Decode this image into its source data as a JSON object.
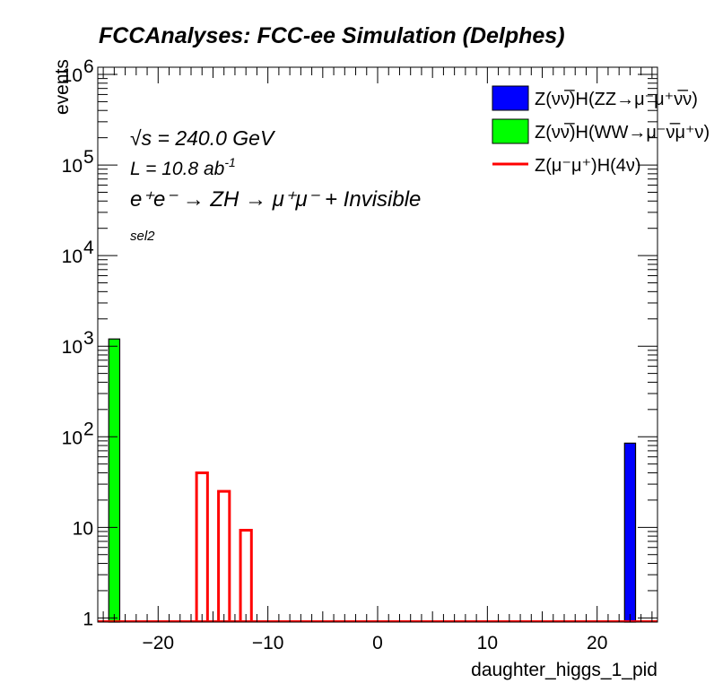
{
  "chart_data": {
    "type": "bar",
    "title": "FCCAnalyses: FCC-ee Simulation (Delphes)",
    "xlabel": "daughter_higgs_1_pid",
    "ylabel": "events",
    "xlim": [
      -25.5,
      25.5
    ],
    "ylim": [
      0.9,
      1200000
    ],
    "y_scale": "log",
    "x_ticks": [
      -20,
      -10,
      0,
      10,
      20
    ],
    "x_tick_labels": [
      "−20",
      "−10",
      "0",
      "10",
      "20"
    ],
    "y_ticks": [
      {
        "value": 1,
        "base": "1",
        "exp": ""
      },
      {
        "value": 10,
        "base": "10",
        "exp": ""
      },
      {
        "value": 100,
        "base": "10",
        "exp": "2"
      },
      {
        "value": 1000,
        "base": "10",
        "exp": "3"
      },
      {
        "value": 10000,
        "base": "10",
        "exp": "4"
      },
      {
        "value": 100000,
        "base": "10",
        "exp": "5"
      },
      {
        "value": 1000000,
        "base": "10",
        "exp": "6"
      }
    ],
    "annotations": {
      "sqrt_sym": "√",
      "sqrt_s": "s",
      "energy": " = 240.0 GeV",
      "lumi_base": "L = 10.8 ab",
      "lumi_exp": "-1",
      "process": "e⁺e⁻ → ZH → μ⁺μ⁻ + Invisible",
      "selection": "sel2"
    },
    "legend_position": "top-right",
    "series": [
      {
        "name": "Z(νν̅)H(ZZ→μ⁻μ⁺ν̅ν)",
        "style": "filled",
        "color": "#0000ff",
        "bins": [
          {
            "low": 22.5,
            "high": 23.5,
            "value": 85
          }
        ]
      },
      {
        "name": "Z(νν̅)H(WW→μ⁻ν̅μ⁺ν)",
        "style": "filled",
        "color": "#00ff00",
        "bins": [
          {
            "low": -24.5,
            "high": -23.5,
            "value": 1200
          }
        ]
      },
      {
        "name": "Z(μ⁻μ⁺)H(4ν)",
        "style": "line",
        "color": "#ff0000",
        "bins": [
          {
            "low": -16.5,
            "high": -15.5,
            "value": 40
          },
          {
            "low": -14.5,
            "high": -13.5,
            "value": 25
          },
          {
            "low": -12.5,
            "high": -11.5,
            "value": 9.3
          }
        ]
      }
    ]
  }
}
